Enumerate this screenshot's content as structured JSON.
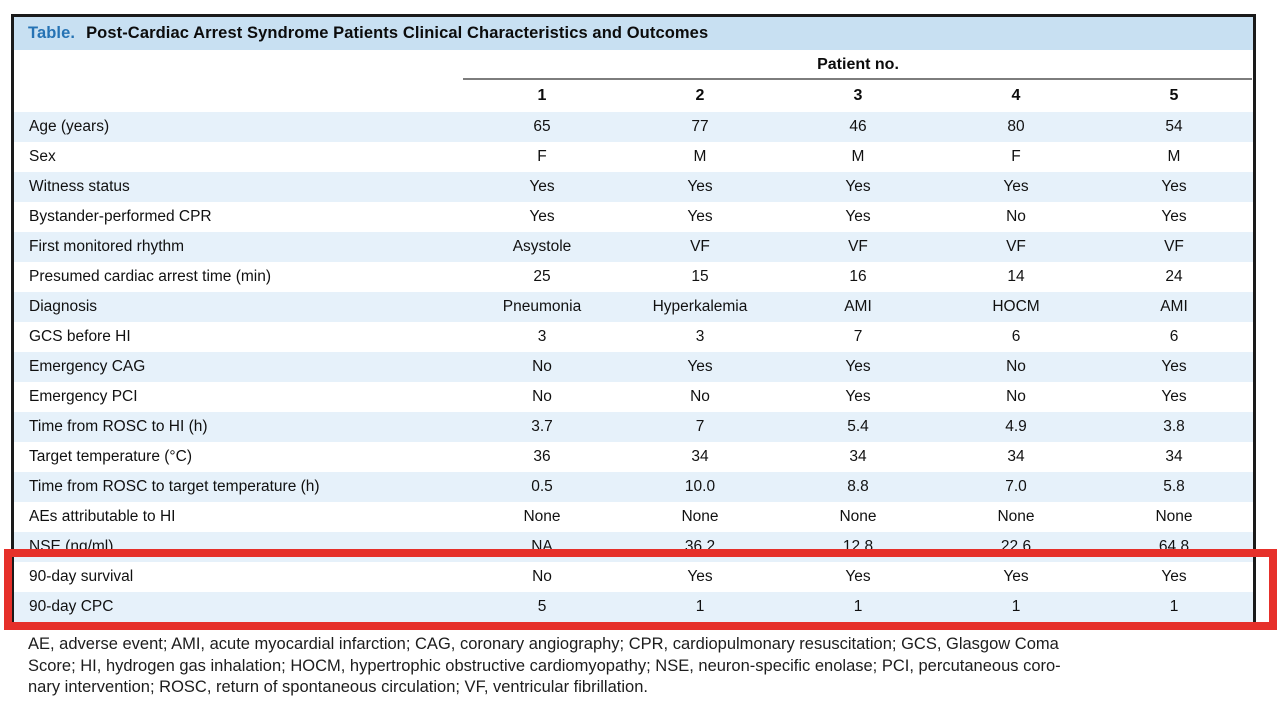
{
  "table": {
    "title_label": "Table.",
    "title": "Post-Cardiac Arrest Syndrome Patients Clinical Characteristics and Outcomes",
    "group_header": "Patient no.",
    "columns": [
      "1",
      "2",
      "3",
      "4",
      "5"
    ],
    "rows": [
      {
        "label": "Age (years)",
        "values": [
          "65",
          "77",
          "46",
          "80",
          "54"
        ]
      },
      {
        "label": "Sex",
        "values": [
          "F",
          "M",
          "M",
          "F",
          "M"
        ]
      },
      {
        "label": "Witness status",
        "values": [
          "Yes",
          "Yes",
          "Yes",
          "Yes",
          "Yes"
        ]
      },
      {
        "label": "Bystander-performed CPR",
        "values": [
          "Yes",
          "Yes",
          "Yes",
          "No",
          "Yes"
        ]
      },
      {
        "label": "First monitored rhythm",
        "values": [
          "Asystole",
          "VF",
          "VF",
          "VF",
          "VF"
        ]
      },
      {
        "label": "Presumed cardiac arrest time (min)",
        "values": [
          "25",
          "15",
          "16",
          "14",
          "24"
        ]
      },
      {
        "label": "Diagnosis",
        "values": [
          "Pneumonia",
          "Hyperkalemia",
          "AMI",
          "HOCM",
          "AMI"
        ]
      },
      {
        "label": "GCS before HI",
        "values": [
          "3",
          "3",
          "7",
          "6",
          "6"
        ]
      },
      {
        "label": "Emergency CAG",
        "values": [
          "No",
          "Yes",
          "Yes",
          "No",
          "Yes"
        ]
      },
      {
        "label": "Emergency PCI",
        "values": [
          "No",
          "No",
          "Yes",
          "No",
          "Yes"
        ]
      },
      {
        "label": "Time from ROSC to HI (h)",
        "values": [
          "3.7",
          "7",
          "5.4",
          "4.9",
          "3.8"
        ]
      },
      {
        "label": "Target temperature (°C)",
        "values": [
          "36",
          "34",
          "34",
          "34",
          "34"
        ]
      },
      {
        "label": "Time from ROSC to target temperature (h)",
        "values": [
          "0.5",
          "10.0",
          "8.8",
          "7.0",
          "5.8"
        ]
      },
      {
        "label": "AEs attributable to HI",
        "values": [
          "None",
          "None",
          "None",
          "None",
          "None"
        ]
      },
      {
        "label": "NSE (ng/ml)",
        "values": [
          "NA",
          "36.2",
          "12.8",
          "22.6",
          "64.8"
        ]
      },
      {
        "label": "90-day survival",
        "values": [
          "No",
          "Yes",
          "Yes",
          "Yes",
          "Yes"
        ]
      },
      {
        "label": "90-day CPC",
        "values": [
          "5",
          "1",
          "1",
          "1",
          "1"
        ]
      }
    ],
    "highlighted_rows": [
      "90-day survival",
      "90-day CPC"
    ]
  },
  "footnote": {
    "lines": [
      "AE, adverse event; AMI, acute myocardial infarction; CAG, coronary angiography; CPR, cardiopulmonary resuscitation; GCS, Glasgow Coma",
      "Score; HI, hydrogen gas inhalation; HOCM, hypertrophic obstructive cardiomyopathy; NSE, neuron-specific enolase; PCI, percutaneous coro-",
      "nary intervention; ROSC, return of spontaneous circulation; VF, ventricular fibrillation."
    ]
  },
  "colors": {
    "title_bar_bg": "#c8e0f2",
    "title_label_blue": "#2673b4",
    "row_stripe": "#e6f1fa",
    "table_border": "#1a1a1a",
    "group_rule_gray": "#7d7d7d",
    "highlight_red": "#e6302a"
  }
}
